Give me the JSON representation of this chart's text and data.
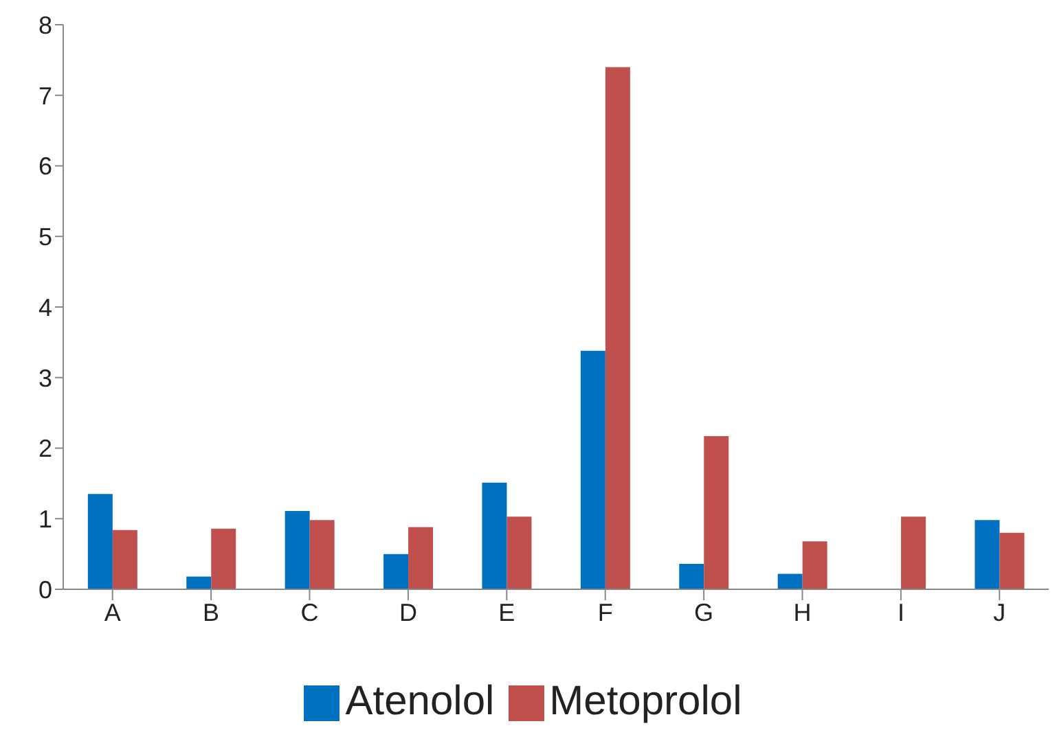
{
  "chart_data": {
    "type": "bar",
    "categories": [
      "A",
      "B",
      "C",
      "D",
      "E",
      "F",
      "G",
      "H",
      "I",
      "J"
    ],
    "series": [
      {
        "name": "Atenolol",
        "color": "#0070c0",
        "values": [
          1.35,
          0.18,
          1.11,
          0.5,
          1.51,
          3.38,
          0.36,
          0.22,
          null,
          0.98
        ]
      },
      {
        "name": "Metoprolol",
        "color": "#c0504d",
        "values": [
          0.84,
          0.86,
          0.98,
          0.88,
          1.03,
          7.4,
          2.17,
          0.68,
          1.03,
          0.8
        ]
      }
    ],
    "ylim": [
      0,
      8
    ],
    "yticks": [
      0,
      1,
      2,
      3,
      4,
      5,
      6,
      7,
      8
    ],
    "grid": false,
    "legend": "bottom"
  }
}
